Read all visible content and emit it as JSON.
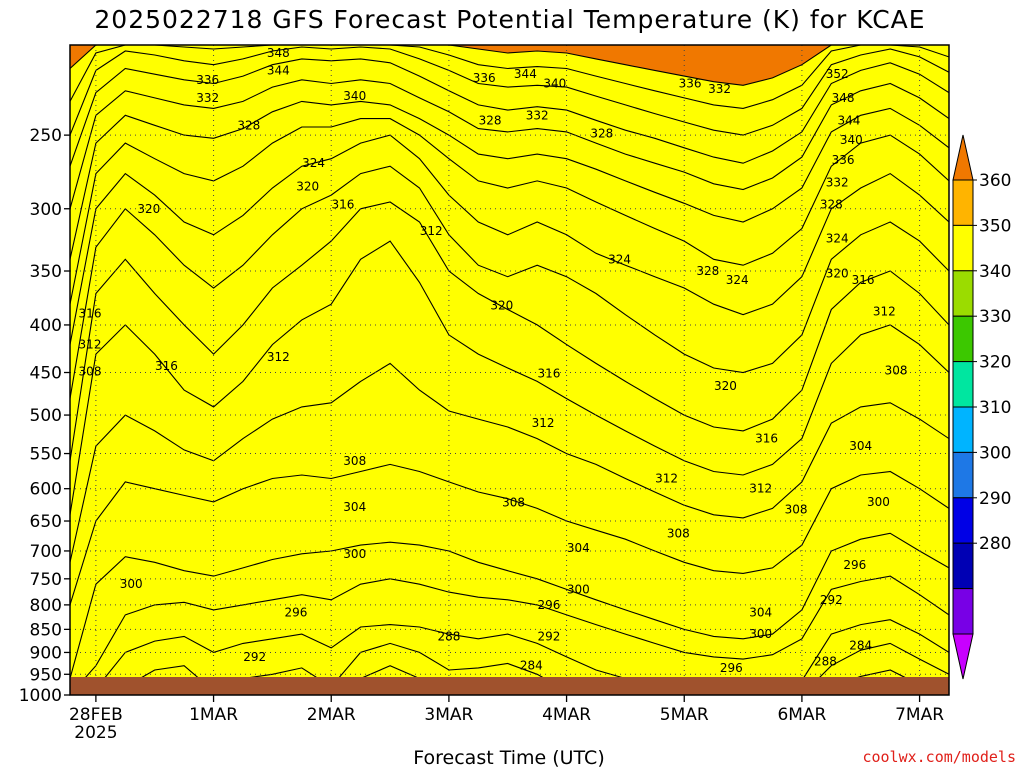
{
  "chart_data": {
    "type": "contour",
    "title": "2025022718 GFS Forecast Potential Temperature (K) for KCAE",
    "xlabel": "Forecast Time (UTC)",
    "ylabel": "",
    "credit": "coolwx.com/models",
    "y_scale": "log-pressure",
    "y_axis_reversed": true,
    "ylim": [
      1000,
      200
    ],
    "y_ticks": [
      250,
      300,
      350,
      400,
      450,
      500,
      550,
      600,
      650,
      700,
      750,
      800,
      850,
      900,
      950,
      1000
    ],
    "x_ticks": [
      {
        "label": "28FEB",
        "sub": "2025",
        "t": 0
      },
      {
        "label": "1MAR",
        "sub": "",
        "t": 1
      },
      {
        "label": "2MAR",
        "sub": "",
        "t": 2
      },
      {
        "label": "3MAR",
        "sub": "",
        "t": 3
      },
      {
        "label": "4MAR",
        "sub": "",
        "t": 4
      },
      {
        "label": "5MAR",
        "sub": "",
        "t": 5
      },
      {
        "label": "6MAR",
        "sub": "",
        "t": 6
      },
      {
        "label": "7MAR",
        "sub": "",
        "t": 7
      }
    ],
    "xlim": [
      -0.22,
      7.25
    ],
    "grid": true,
    "contour_interval": 4,
    "colorbar": {
      "labels": [
        360,
        350,
        340,
        330,
        320,
        310,
        300,
        290,
        280
      ],
      "colors": [
        "#f07800",
        "#ffb400",
        "#ffff00",
        "#9bdc00",
        "#3cc800",
        "#00e6a0",
        "#00b4ff",
        "#1e78e6",
        "#0000e6",
        "#0000b4",
        "#7800e6",
        "#c800ff"
      ],
      "range": [
        280,
        360
      ],
      "extend": "both"
    },
    "x": [
      -0.22,
      0.0,
      0.25,
      0.5,
      0.75,
      1.0,
      1.25,
      1.5,
      1.75,
      2.0,
      2.25,
      2.5,
      2.75,
      3.0,
      3.25,
      3.5,
      3.75,
      4.0,
      4.25,
      4.5,
      4.75,
      5.0,
      5.25,
      5.5,
      5.75,
      6.0,
      6.25,
      6.5,
      6.75,
      7.0,
      7.25
    ],
    "series": [
      {
        "level": 280,
        "p": [
          1000,
          1000,
          1000,
          1000,
          1000,
          1000,
          1000,
          1000,
          1000,
          1000,
          1000,
          1000,
          1000,
          1000,
          1000,
          1000,
          1000,
          1000,
          1000,
          1000,
          1000,
          1000,
          1000,
          1000,
          1000,
          1000,
          1000,
          1000,
          1000,
          1000,
          1000
        ]
      },
      {
        "level": 284,
        "p": [
          1000,
          1000,
          1000,
          990,
          985,
          1000,
          995,
          980,
          975,
          1000,
          960,
          930,
          960,
          995,
          990,
          975,
          985,
          1000,
          1000,
          1000,
          1000,
          1000,
          1000,
          1000,
          1000,
          1000,
          980,
          955,
          940,
          975,
          990
        ]
      },
      {
        "level": 288,
        "p": [
          1000,
          1000,
          980,
          940,
          930,
          990,
          960,
          950,
          935,
          980,
          900,
          880,
          900,
          940,
          935,
          925,
          950,
          990,
          1000,
          1000,
          1000,
          1000,
          1000,
          1000,
          1000,
          1000,
          930,
          895,
          880,
          915,
          950
        ]
      },
      {
        "level": 292,
        "p": [
          1000,
          985,
          900,
          875,
          865,
          900,
          880,
          870,
          860,
          890,
          845,
          840,
          845,
          860,
          870,
          860,
          880,
          910,
          940,
          960,
          975,
          985,
          990,
          990,
          985,
          965,
          860,
          840,
          830,
          860,
          900
        ]
      },
      {
        "level": 296,
        "p": [
          1000,
          930,
          820,
          800,
          795,
          810,
          800,
          790,
          780,
          790,
          760,
          750,
          760,
          775,
          785,
          790,
          800,
          820,
          840,
          860,
          880,
          900,
          910,
          915,
          905,
          870,
          770,
          755,
          745,
          780,
          820
        ]
      },
      {
        "level": 300,
        "p": [
          960,
          760,
          710,
          720,
          735,
          745,
          730,
          715,
          705,
          700,
          690,
          685,
          690,
          700,
          720,
          735,
          750,
          770,
          790,
          810,
          830,
          850,
          865,
          870,
          860,
          810,
          700,
          680,
          670,
          700,
          730
        ]
      },
      {
        "level": 304,
        "p": [
          800,
          650,
          590,
          600,
          610,
          620,
          600,
          585,
          580,
          585,
          575,
          565,
          575,
          590,
          605,
          615,
          630,
          650,
          665,
          680,
          700,
          720,
          735,
          740,
          730,
          690,
          600,
          580,
          575,
          600,
          630
        ]
      },
      {
        "level": 308,
        "p": [
          720,
          540,
          500,
          520,
          545,
          560,
          530,
          505,
          490,
          485,
          460,
          440,
          470,
          495,
          505,
          515,
          530,
          550,
          565,
          585,
          605,
          625,
          640,
          645,
          630,
          590,
          510,
          490,
          485,
          505,
          530
        ]
      },
      {
        "level": 312,
        "p": [
          640,
          430,
          400,
          430,
          470,
          490,
          460,
          420,
          395,
          380,
          340,
          325,
          360,
          410,
          430,
          445,
          460,
          480,
          500,
          520,
          540,
          560,
          575,
          580,
          565,
          530,
          440,
          410,
          400,
          420,
          450
        ]
      },
      {
        "level": 316,
        "p": [
          560,
          370,
          340,
          370,
          400,
          430,
          400,
          365,
          345,
          325,
          300,
          295,
          310,
          350,
          370,
          385,
          400,
          420,
          440,
          460,
          480,
          500,
          515,
          520,
          505,
          470,
          385,
          360,
          350,
          370,
          400
        ]
      },
      {
        "level": 320,
        "p": [
          480,
          330,
          300,
          320,
          345,
          365,
          345,
          320,
          300,
          290,
          275,
          270,
          285,
          320,
          345,
          355,
          345,
          355,
          370,
          390,
          410,
          430,
          445,
          450,
          440,
          410,
          340,
          320,
          310,
          325,
          350
        ]
      },
      {
        "level": 324,
        "p": [
          420,
          300,
          275,
          290,
          310,
          320,
          305,
          285,
          270,
          265,
          255,
          250,
          265,
          290,
          310,
          320,
          310,
          320,
          335,
          345,
          355,
          365,
          380,
          390,
          380,
          355,
          300,
          285,
          275,
          290,
          310
        ]
      },
      {
        "level": 328,
        "p": [
          380,
          275,
          255,
          265,
          275,
          280,
          270,
          255,
          245,
          245,
          240,
          240,
          250,
          265,
          280,
          285,
          280,
          285,
          295,
          305,
          315,
          325,
          340,
          345,
          335,
          315,
          270,
          255,
          250,
          262,
          280
        ]
      },
      {
        "level": 332,
        "p": [
          340,
          255,
          238,
          244,
          250,
          252,
          246,
          236,
          230,
          232,
          230,
          232,
          240,
          250,
          262,
          265,
          262,
          265,
          272,
          280,
          288,
          296,
          305,
          310,
          300,
          285,
          248,
          238,
          234,
          244,
          258
        ]
      },
      {
        "level": 336,
        "p": [
          300,
          238,
          224,
          228,
          232,
          234,
          230,
          222,
          218,
          220,
          218,
          220,
          228,
          236,
          246,
          248,
          246,
          248,
          255,
          262,
          268,
          274,
          282,
          286,
          278,
          264,
          232,
          224,
          220,
          228,
          240
        ]
      },
      {
        "level": 340,
        "p": [
          270,
          225,
          212,
          215,
          218,
          220,
          216,
          210,
          207,
          208,
          207,
          209,
          216,
          224,
          232,
          235,
          233,
          235,
          241,
          247,
          252,
          258,
          264,
          268,
          260,
          248,
          220,
          213,
          209,
          215,
          225
        ]
      },
      {
        "level": 344,
        "p": [
          250,
          213,
          203,
          205,
          208,
          210,
          207,
          203,
          201,
          202,
          201,
          202,
          207,
          213,
          220,
          222,
          221,
          222,
          227,
          232,
          237,
          242,
          247,
          250,
          244,
          234,
          210,
          205,
          202,
          206,
          214
        ]
      },
      {
        "level": 348,
        "p": [
          230,
          204,
          200,
          200,
          201,
          202,
          201,
          200,
          200,
          200,
          200,
          200,
          201,
          205,
          210,
          212,
          211,
          212,
          216,
          220,
          224,
          228,
          232,
          234,
          229,
          221,
          203,
          200,
          200,
          201,
          206
        ]
      },
      {
        "level": 352,
        "p": [
          212,
          200,
          200,
          200,
          200,
          200,
          200,
          200,
          200,
          200,
          200,
          200,
          200,
          200,
          202,
          204,
          203,
          204,
          207,
          210,
          213,
          216,
          219,
          221,
          217,
          210,
          200,
          200,
          200,
          200,
          200
        ]
      }
    ],
    "contour_labels": [
      {
        "text": "348",
        "t": 1.55,
        "p": 204
      },
      {
        "text": "344",
        "t": 1.55,
        "p": 213
      },
      {
        "text": "336",
        "t": 0.95,
        "p": 218
      },
      {
        "text": "332",
        "t": 0.95,
        "p": 228
      },
      {
        "text": "340",
        "t": 2.2,
        "p": 227
      },
      {
        "text": "336",
        "t": 3.3,
        "p": 217
      },
      {
        "text": "344",
        "t": 3.65,
        "p": 215
      },
      {
        "text": "340",
        "t": 3.9,
        "p": 220
      },
      {
        "text": "332",
        "t": 3.75,
        "p": 238
      },
      {
        "text": "336",
        "t": 5.05,
        "p": 220
      },
      {
        "text": "332",
        "t": 5.3,
        "p": 223
      },
      {
        "text": "352",
        "t": 6.3,
        "p": 215
      },
      {
        "text": "348",
        "t": 6.35,
        "p": 228
      },
      {
        "text": "344",
        "t": 6.4,
        "p": 241
      },
      {
        "text": "340",
        "t": 6.42,
        "p": 253
      },
      {
        "text": "336",
        "t": 6.35,
        "p": 266
      },
      {
        "text": "332",
        "t": 6.3,
        "p": 281
      },
      {
        "text": "328",
        "t": 1.3,
        "p": 244
      },
      {
        "text": "324",
        "t": 1.85,
        "p": 268
      },
      {
        "text": "320",
        "t": 1.8,
        "p": 284
      },
      {
        "text": "328",
        "t": 3.35,
        "p": 241
      },
      {
        "text": "328",
        "t": 4.3,
        "p": 249
      },
      {
        "text": "316",
        "t": 2.1,
        "p": 297
      },
      {
        "text": "320",
        "t": 0.45,
        "p": 300
      },
      {
        "text": "312",
        "t": 2.85,
        "p": 317
      },
      {
        "text": "324",
        "t": 4.45,
        "p": 340
      },
      {
        "text": "328",
        "t": 6.25,
        "p": 297
      },
      {
        "text": "324",
        "t": 6.3,
        "p": 323
      },
      {
        "text": "320",
        "t": 6.3,
        "p": 352
      },
      {
        "text": "316",
        "t": 6.52,
        "p": 358
      },
      {
        "text": "312",
        "t": 6.7,
        "p": 387
      },
      {
        "text": "328",
        "t": 5.2,
        "p": 350
      },
      {
        "text": "324",
        "t": 5.45,
        "p": 358
      },
      {
        "text": "320",
        "t": 3.45,
        "p": 381
      },
      {
        "text": "316",
        "t": -0.05,
        "p": 389
      },
      {
        "text": "312",
        "t": -0.05,
        "p": 420
      },
      {
        "text": "316",
        "t": 0.6,
        "p": 443
      },
      {
        "text": "312",
        "t": 1.55,
        "p": 433
      },
      {
        "text": "308",
        "t": -0.05,
        "p": 449
      },
      {
        "text": "316",
        "t": 3.85,
        "p": 451
      },
      {
        "text": "320",
        "t": 5.35,
        "p": 465
      },
      {
        "text": "308",
        "t": 6.8,
        "p": 448
      },
      {
        "text": "312",
        "t": 3.8,
        "p": 510
      },
      {
        "text": "316",
        "t": 5.7,
        "p": 530
      },
      {
        "text": "304",
        "t": 6.5,
        "p": 540
      },
      {
        "text": "308",
        "t": 2.2,
        "p": 560
      },
      {
        "text": "312",
        "t": 4.85,
        "p": 585
      },
      {
        "text": "312",
        "t": 5.65,
        "p": 600
      },
      {
        "text": "304",
        "t": 2.2,
        "p": 628
      },
      {
        "text": "308",
        "t": 3.55,
        "p": 621
      },
      {
        "text": "308",
        "t": 5.95,
        "p": 632
      },
      {
        "text": "300",
        "t": 6.65,
        "p": 620
      },
      {
        "text": "308",
        "t": 4.95,
        "p": 670
      },
      {
        "text": "304",
        "t": 4.1,
        "p": 695
      },
      {
        "text": "300",
        "t": 2.2,
        "p": 705
      },
      {
        "text": "296",
        "t": 6.45,
        "p": 725
      },
      {
        "text": "300",
        "t": 0.3,
        "p": 760
      },
      {
        "text": "300",
        "t": 4.1,
        "p": 770
      },
      {
        "text": "296",
        "t": 1.7,
        "p": 815
      },
      {
        "text": "296",
        "t": 3.85,
        "p": 800
      },
      {
        "text": "292",
        "t": 6.25,
        "p": 790
      },
      {
        "text": "304",
        "t": 5.65,
        "p": 815
      },
      {
        "text": "300",
        "t": 5.65,
        "p": 860
      },
      {
        "text": "288",
        "t": 3.0,
        "p": 865
      },
      {
        "text": "292",
        "t": 3.85,
        "p": 865
      },
      {
        "text": "284",
        "t": 6.5,
        "p": 885
      },
      {
        "text": "292",
        "t": 1.35,
        "p": 910
      },
      {
        "text": "284",
        "t": 3.7,
        "p": 930
      },
      {
        "text": "296",
        "t": 5.4,
        "p": 935
      },
      {
        "text": "288",
        "t": 6.2,
        "p": 920
      }
    ]
  }
}
